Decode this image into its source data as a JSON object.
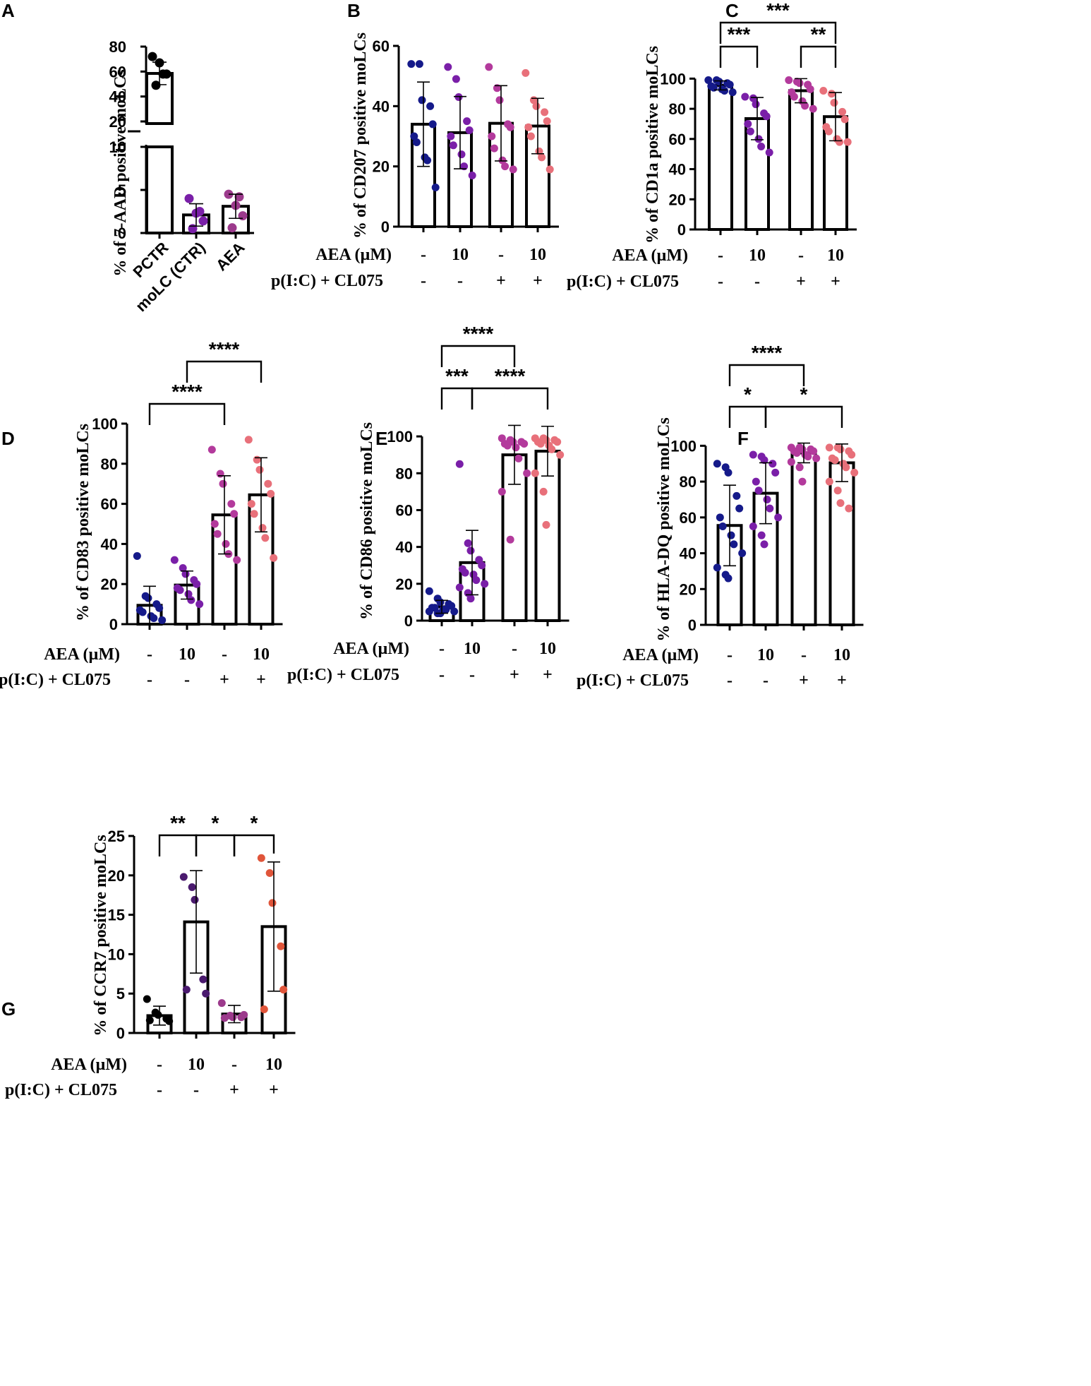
{
  "colors": {
    "navy": "#151a8a",
    "purple": "#7a1fa8",
    "magenta": "#b33a9c",
    "salmon": "#e8707a",
    "black": "#000000",
    "dark_purple": "#4a1a6e",
    "mauve": "#9c3a8c",
    "orange_red": "#e0553a"
  },
  "chart_data": [
    {
      "panel": "A",
      "type": "bar",
      "ylabel": "% of 7-AAD positive moLCs",
      "categories": [
        "PCTR",
        "moLC (CTR)",
        "AEA"
      ],
      "y_axis_break": {
        "lower": [
          0,
          10
        ],
        "upper": [
          20,
          80
        ]
      },
      "yticks_lower": [
        "0",
        "5",
        "10"
      ],
      "yticks_upper": [
        "20",
        "40",
        "60",
        "80"
      ],
      "means": [
        58.5,
        2.1,
        3.1
      ],
      "sd": [
        9,
        1.3,
        1.4
      ],
      "points": [
        [
          72,
          67,
          58,
          49,
          58
        ],
        [
          4.0,
          2.3,
          1.4,
          0.5,
          2.5
        ],
        [
          4.5,
          3.2,
          2.0,
          0.6,
          4.2
        ]
      ],
      "point_colors": [
        "black",
        "purple",
        "mauve"
      ]
    },
    {
      "panel": "B",
      "type": "bar",
      "ylabel": "% of CD207 positive moLCs",
      "ylim": [
        0,
        60
      ],
      "yticks": [
        "0",
        "20",
        "40",
        "60"
      ],
      "aea_row": [
        "-",
        "10",
        "-",
        "10"
      ],
      "pic_row": [
        "-",
        "-",
        "+",
        "+"
      ],
      "means": [
        34,
        31.2,
        34.3,
        33.4
      ],
      "sd": [
        14,
        12,
        12.5,
        9.2
      ],
      "points": [
        [
          54,
          54,
          42,
          40,
          34,
          30,
          28,
          23,
          22,
          13
        ],
        [
          53,
          49,
          43,
          35,
          32,
          30,
          27,
          24,
          20,
          17
        ],
        [
          53,
          46,
          42,
          34,
          33,
          30,
          26,
          22,
          20,
          19
        ],
        [
          51,
          42,
          40,
          38,
          35,
          33,
          30,
          25,
          23,
          19
        ]
      ],
      "point_colors": [
        "navy",
        "purple",
        "magenta",
        "salmon"
      ]
    },
    {
      "panel": "C",
      "type": "bar",
      "ylabel": "% of CD1a positive moLCs",
      "ylim": [
        0,
        110
      ],
      "yticks": [
        "0",
        "20",
        "40",
        "60",
        "80",
        "100"
      ],
      "aea_row": [
        "-",
        "10",
        "-",
        "10"
      ],
      "pic_row": [
        "-",
        "-",
        "+",
        "+"
      ],
      "means": [
        95.5,
        73.5,
        92,
        74.8
      ],
      "sd": [
        3,
        14,
        8,
        16
      ],
      "points": [
        [
          99,
          99,
          98,
          97,
          96,
          95,
          94,
          93,
          92,
          91
        ],
        [
          88,
          87,
          83,
          77,
          75,
          70,
          65,
          60,
          55,
          51
        ],
        [
          99,
          98,
          97,
          96,
          93,
          91,
          88,
          85,
          82,
          80
        ],
        [
          92,
          90,
          84,
          78,
          73,
          68,
          65,
          60,
          58,
          58
        ]
      ],
      "point_colors": [
        "navy",
        "purple",
        "magenta",
        "salmon"
      ],
      "significance": [
        {
          "from": 0,
          "to": 3,
          "label": "***",
          "level": 0
        },
        {
          "from": 0,
          "to": 1,
          "label": "***",
          "level": 1
        },
        {
          "from": 2,
          "to": 3,
          "label": "**",
          "level": 1
        }
      ]
    },
    {
      "panel": "D",
      "type": "bar",
      "ylabel": "% of CD83 positive moLCs",
      "ylim": [
        0,
        100
      ],
      "yticks": [
        "0",
        "20",
        "40",
        "60",
        "80",
        "100"
      ],
      "aea_row": [
        "-",
        "10",
        "-",
        "10"
      ],
      "pic_row": [
        "-",
        "-",
        "+",
        "+"
      ],
      "means": [
        9.4,
        19.5,
        54.5,
        64.5
      ],
      "sd": [
        9.5,
        7,
        19.5,
        18.5
      ],
      "points": [
        [
          34,
          14,
          13,
          10,
          8,
          7,
          6,
          4,
          3,
          2
        ],
        [
          32,
          28,
          25,
          22,
          20,
          18,
          17,
          15,
          12,
          10
        ],
        [
          87,
          75,
          70,
          60,
          55,
          50,
          45,
          40,
          35,
          32
        ],
        [
          92,
          82,
          77,
          70,
          65,
          60,
          55,
          48,
          43,
          33
        ]
      ],
      "point_colors": [
        "navy",
        "purple",
        "magenta",
        "salmon"
      ],
      "significance": [
        {
          "from": 1,
          "to": 3,
          "label": "****",
          "level": 0
        },
        {
          "from": 0,
          "to": 2,
          "label": "****",
          "level": 1
        }
      ]
    },
    {
      "panel": "E",
      "type": "bar",
      "ylabel": "% of CD86 positive moLCs",
      "ylim": [
        0,
        110
      ],
      "yticks": [
        "0",
        "20",
        "40",
        "60",
        "80",
        "100"
      ],
      "aea_row": [
        "-",
        "10",
        "-",
        "10"
      ],
      "pic_row": [
        "-",
        "-",
        "+",
        "+"
      ],
      "means": [
        7.5,
        31.5,
        90,
        92
      ],
      "sd": [
        3.5,
        17.5,
        16,
        13.5
      ],
      "points": [
        [
          16,
          12,
          10,
          9,
          8,
          7,
          7,
          6,
          6,
          5,
          5,
          4,
          4
        ],
        [
          85,
          42,
          38,
          33,
          30,
          28,
          26,
          25,
          22,
          20,
          18,
          15,
          12
        ],
        [
          99,
          98,
          97,
          97,
          96,
          96,
          95,
          94,
          88,
          80,
          70,
          44
        ],
        [
          99,
          99,
          98,
          98,
          97,
          97,
          96,
          95,
          93,
          90,
          80,
          70,
          52
        ]
      ],
      "point_colors": [
        "navy",
        "purple",
        "magenta",
        "salmon"
      ],
      "significance": [
        {
          "from": 0,
          "to": 2,
          "label": "****",
          "level": 0
        },
        {
          "from": 0,
          "to": 1,
          "label": "***",
          "level": 1
        },
        {
          "from": 1,
          "to": 3,
          "label": "****",
          "level": 1
        }
      ]
    },
    {
      "panel": "F",
      "type": "bar",
      "ylabel": "% of HLA-DQ positive moLCs",
      "ylim": [
        0,
        110
      ],
      "yticks": [
        "0",
        "20",
        "40",
        "60",
        "80",
        "100"
      ],
      "aea_row": [
        "-",
        "10",
        "-",
        "10"
      ],
      "pic_row": [
        "-",
        "-",
        "+",
        "+"
      ],
      "means": [
        55.5,
        73.5,
        96,
        90.5
      ],
      "sd": [
        22.5,
        17,
        5.5,
        10.5
      ],
      "points": [
        [
          90,
          88,
          85,
          72,
          65,
          60,
          55,
          50,
          45,
          40,
          32,
          28,
          26
        ],
        [
          95,
          94,
          92,
          90,
          85,
          80,
          75,
          70,
          65,
          60,
          55,
          50,
          45
        ],
        [
          99,
          99,
          98,
          98,
          97,
          97,
          96,
          95,
          94,
          93,
          91,
          88,
          80
        ],
        [
          99,
          99,
          98,
          97,
          95,
          93,
          92,
          90,
          88,
          85,
          80,
          75,
          68,
          65
        ]
      ],
      "point_colors": [
        "navy",
        "purple",
        "magenta",
        "salmon"
      ],
      "significance": [
        {
          "from": 0,
          "to": 2,
          "label": "****",
          "level": 0
        },
        {
          "from": 0,
          "to": 1,
          "label": "*",
          "level": 1
        },
        {
          "from": 1,
          "to": 3,
          "label": "*",
          "level": 1
        }
      ]
    },
    {
      "panel": "G",
      "type": "bar",
      "ylabel": "% of CCR7 positive moLCs",
      "ylim": [
        0,
        25
      ],
      "yticks": [
        "0",
        "5",
        "10",
        "15",
        "20",
        "25"
      ],
      "aea_row": [
        "-",
        "10",
        "-",
        "10"
      ],
      "pic_row": [
        "-",
        "-",
        "+",
        "+"
      ],
      "means": [
        2.2,
        14.1,
        2.4,
        13.5
      ],
      "sd": [
        1.2,
        6.5,
        1.1,
        8.2
      ],
      "points": [
        [
          4.3,
          2.6,
          2.3,
          1.8,
          1.5,
          1.6
        ],
        [
          19.8,
          18.5,
          16.9,
          6.8,
          5.0,
          5.5
        ],
        [
          3.8,
          2.2,
          2.0,
          2.0,
          2.3,
          1.9
        ],
        [
          22.2,
          20.3,
          16.5,
          11.0,
          5.5,
          3.0
        ]
      ],
      "point_colors": [
        "black",
        "dark_purple",
        "mauve",
        "orange_red"
      ],
      "significance": [
        {
          "from": 0,
          "to": 1,
          "label": "**",
          "level": 0
        },
        {
          "from": 1,
          "to": 2,
          "label": "*",
          "level": 0
        },
        {
          "from": 2,
          "to": 3,
          "label": "*",
          "level": 0
        }
      ]
    }
  ],
  "row_labels": {
    "aea": "AEA (µM)",
    "pic": "p(I:C) + CL075"
  }
}
